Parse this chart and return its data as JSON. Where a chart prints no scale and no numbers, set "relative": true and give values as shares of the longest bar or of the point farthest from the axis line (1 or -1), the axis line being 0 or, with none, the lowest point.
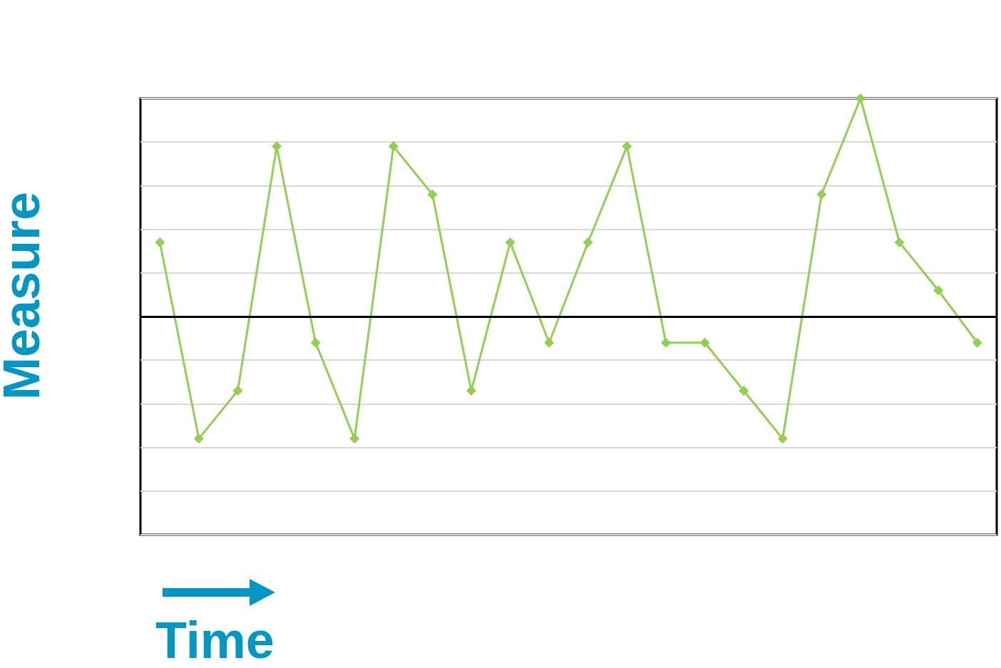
{
  "chart_data": {
    "type": "line",
    "relative": true,
    "xlabel": "Time",
    "ylabel": "Measure",
    "categories": [
      null,
      null,
      null,
      null,
      null,
      null,
      null,
      null,
      null,
      null,
      null,
      null,
      null,
      null,
      null,
      null,
      null,
      null,
      null,
      null,
      null,
      null
    ],
    "series": [
      {
        "color": "#92d050",
        "values": [
          0.67,
          0.22,
          0.33,
          0.89,
          0.44,
          0.22,
          0.89,
          0.78,
          0.33,
          0.67,
          0.44,
          0.67,
          0.89,
          0.44,
          0.44,
          0.33,
          0.22,
          0.78,
          1,
          0.67,
          0.56,
          0.44
        ]
      }
    ],
    "ref_lines": [
      {
        "axis": "y",
        "value": 0.5,
        "color": "#000000",
        "line_style": "solid"
      }
    ],
    "marker": "diamond",
    "grid": "y"
  }
}
